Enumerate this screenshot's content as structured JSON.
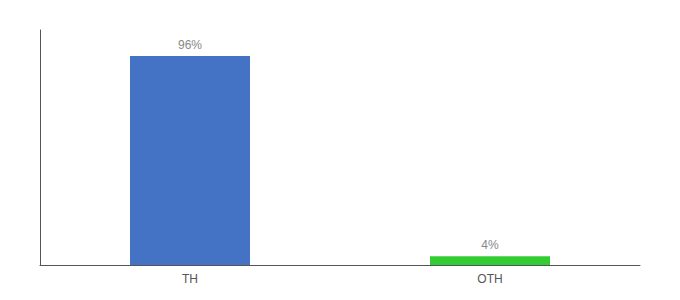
{
  "chart_data": {
    "type": "bar",
    "categories": [
      "TH",
      "OTH"
    ],
    "values": [
      96,
      4
    ],
    "colors": [
      "#4472c4",
      "#33cc33"
    ],
    "value_labels": [
      "96%",
      "4%"
    ],
    "data_labels": true,
    "ylim": [
      0,
      108
    ],
    "tick_labels": "x",
    "grid": false
  }
}
